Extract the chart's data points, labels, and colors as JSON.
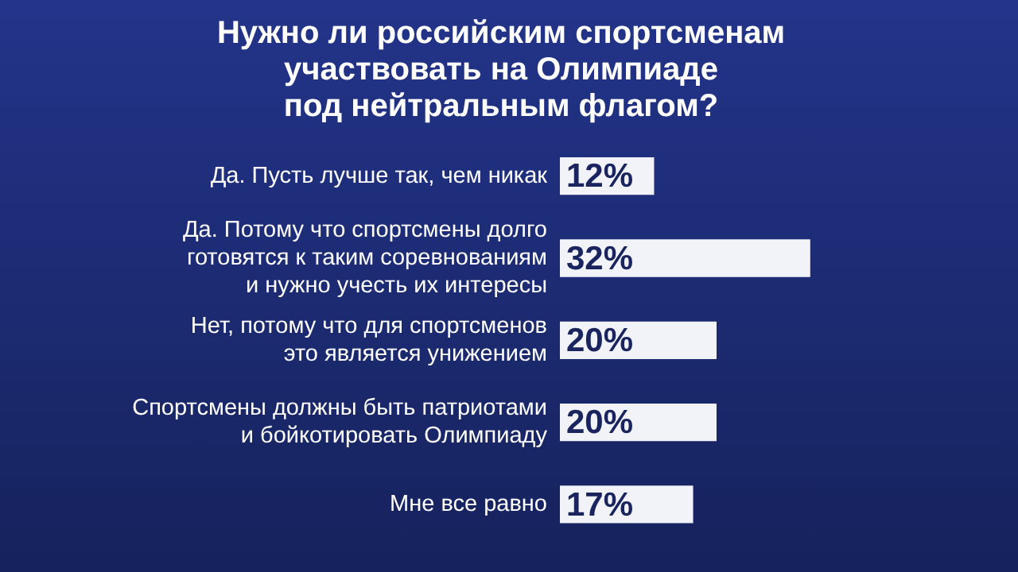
{
  "chart_data": {
    "type": "bar",
    "orientation": "horizontal",
    "title": "Нужно ли российским спортсменам\nучаствовать на Олимпиаде\nпод нейтральным флагом?",
    "categories": [
      "Да. Пусть лучше так, чем никак",
      "Да. Потому что спортсмены долго\nготовятся к таким соревнованиям\nи нужно учесть их интересы",
      "Нет, потому что для спортсменов\nэто является унижением",
      "Спортсмены должны быть патриотами\nи бойкотировать Олимпиаду",
      "Мне все равно"
    ],
    "values": [
      12,
      32,
      20,
      20,
      17
    ],
    "value_labels": [
      "12%",
      "32%",
      "20%",
      "20%",
      "17%"
    ],
    "color": "#f2f3f8",
    "grid": false,
    "legend": false,
    "tick_labels": "y"
  }
}
